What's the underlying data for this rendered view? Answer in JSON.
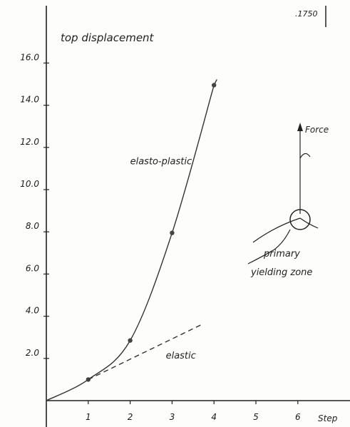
{
  "page": {
    "code": ".1750"
  },
  "chart_data": {
    "type": "line",
    "title": "",
    "ylabel": "top displacement",
    "xlabel": "Step",
    "xlim": [
      0,
      7
    ],
    "ylim": [
      0,
      17
    ],
    "x_ticks": [
      1,
      2,
      3,
      4,
      5,
      6
    ],
    "x_tick_labels": [
      "1",
      "2",
      "3",
      "4",
      "5",
      "6"
    ],
    "y_ticks": [
      2,
      4,
      6,
      8,
      10,
      12,
      14,
      16
    ],
    "y_tick_labels": [
      "2.0",
      "4.0",
      "6.0",
      "8.0",
      "10.0",
      "12.0",
      "14.0",
      "16.0"
    ],
    "grid": false,
    "series": [
      {
        "name": "",
        "style": "solid",
        "x": [
          0,
          1,
          2,
          3,
          4
        ],
        "y": [
          0,
          1.0,
          2.85,
          7.95,
          14.95
        ],
        "markers": [
          1,
          2,
          3,
          4
        ]
      },
      {
        "name": "",
        "style": "dashed",
        "x": [
          1,
          3.7
        ],
        "y": [
          1.0,
          3.6
        ]
      }
    ],
    "annotations": [
      {
        "text": "elasto-plastic",
        "x": 2.0,
        "y": 11.2
      },
      {
        "text": "elastic",
        "x": 2.85,
        "y": 2.0
      }
    ],
    "inset": {
      "force_label": "Force",
      "zone_label_line1": "primary",
      "zone_label_line2": "yielding zone"
    }
  }
}
